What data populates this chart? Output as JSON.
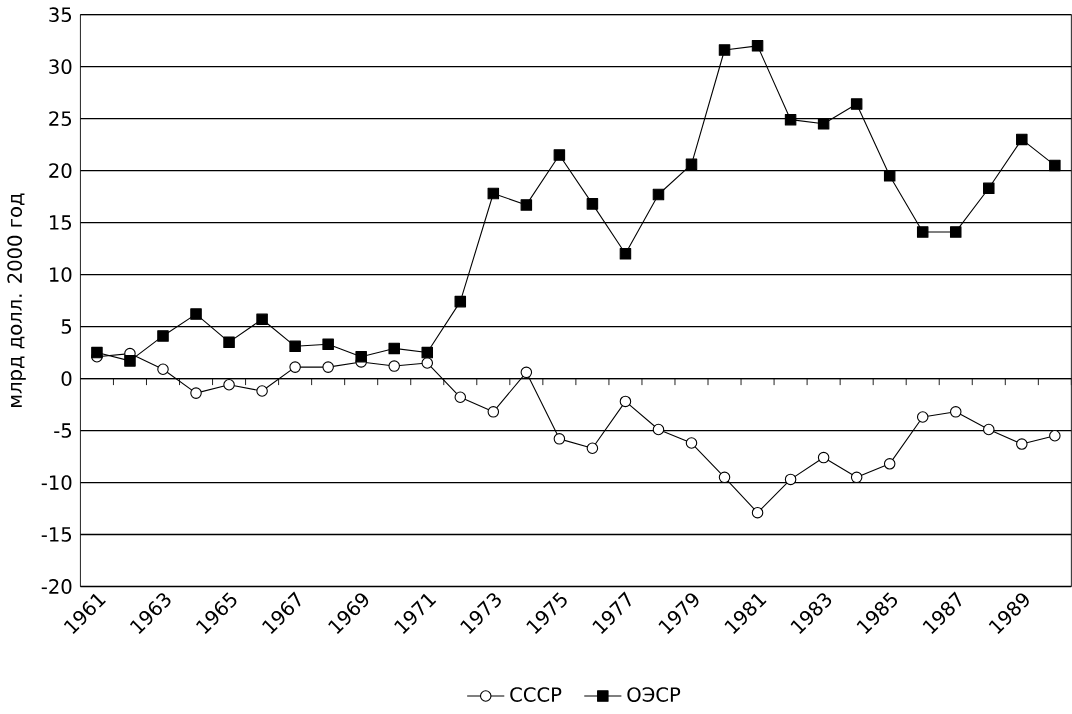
{
  "chart_data": {
    "type": "line",
    "ylabel": "млрд долл. 2000 год",
    "categories": [
      "1961",
      null,
      "1963",
      null,
      "1965",
      null,
      "1967",
      null,
      "1969",
      null,
      "1971",
      null,
      "1973",
      null,
      "1975",
      null,
      "1977",
      null,
      "1979",
      null,
      "1981",
      null,
      "1983",
      null,
      "1985",
      null,
      "1987",
      null,
      "1989",
      null
    ],
    "series": [
      {
        "name": "СССР",
        "color": "#000000",
        "marker": "circle",
        "values": [
          2.1,
          2.4,
          0.9,
          -1.4,
          -0.6,
          -1.2,
          1.1,
          1.1,
          1.6,
          1.2,
          1.5,
          -1.8,
          -3.2,
          0.6,
          -5.8,
          -6.7,
          -2.2,
          -4.9,
          -6.2,
          -9.5,
          -12.9,
          -9.7,
          -7.6,
          -9.5,
          -8.2,
          -3.7,
          -3.2,
          -4.9,
          -6.3,
          -5.5
        ]
      },
      {
        "name": "ОЭСР",
        "color": "#000000",
        "marker": "square",
        "values": [
          2.5,
          1.7,
          4.1,
          6.2,
          3.5,
          5.7,
          3.1,
          3.3,
          2.1,
          2.9,
          2.5,
          7.4,
          17.8,
          16.7,
          21.5,
          16.8,
          12.0,
          17.7,
          20.6,
          31.6,
          32.0,
          24.9,
          24.5,
          26.4,
          19.5,
          14.1,
          14.1,
          18.3,
          23.0,
          20.5
        ]
      }
    ],
    "ylim": [
      -20,
      35
    ],
    "yticks": [
      -20,
      -15,
      -10,
      -5,
      0,
      5,
      10,
      15,
      20,
      25,
      30,
      35
    ],
    "grid": "y",
    "legend": "bottom",
    "line_style": "solid"
  }
}
